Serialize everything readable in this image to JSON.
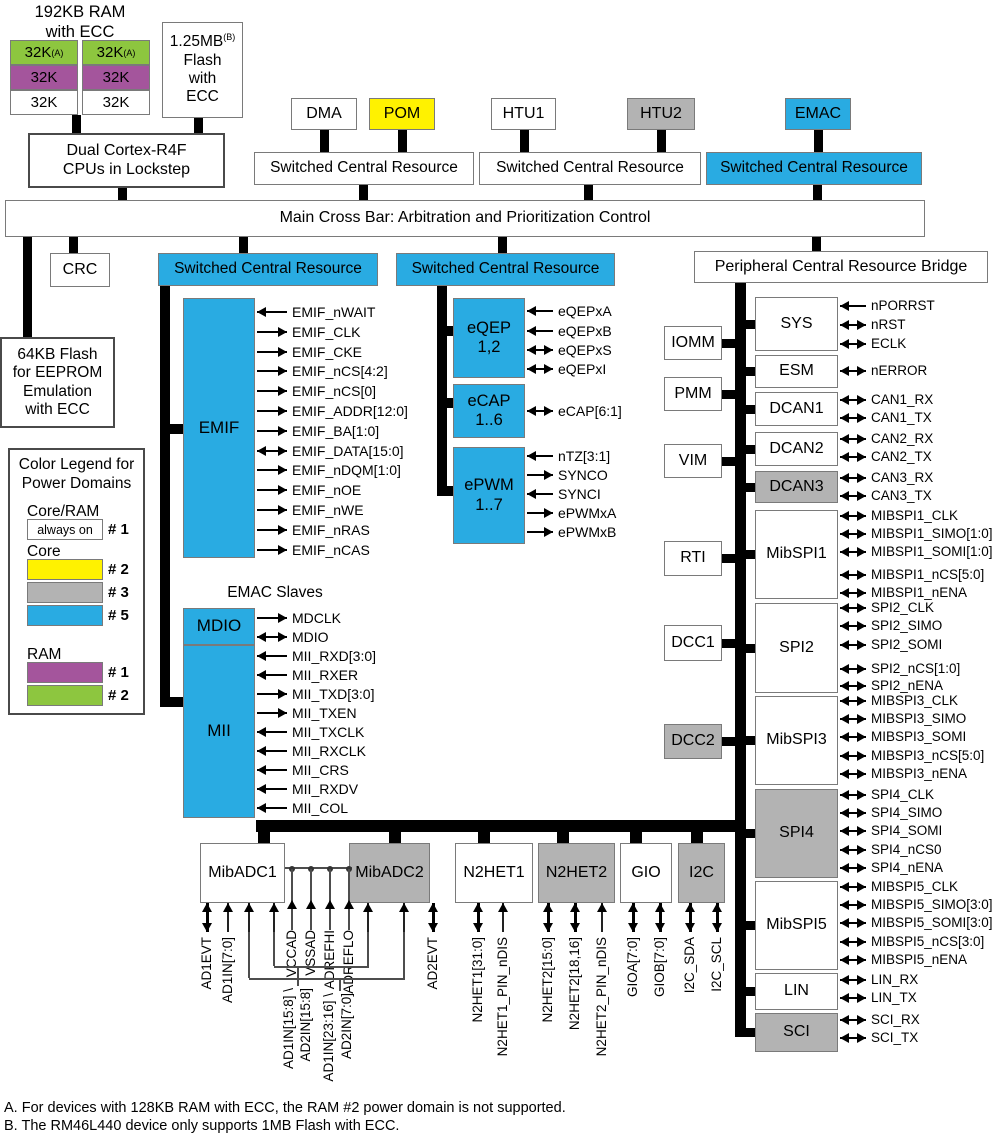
{
  "colors": {
    "white": "#FFFFFF",
    "cyan": "#29ABE2",
    "yellow": "#FFF200",
    "gray": "#B3B3B3",
    "green": "#8DC63F",
    "purple": "#A4559C"
  },
  "header": {
    "ram_title": "192KB RAM\nwith ECC",
    "ram_table": {
      "rows": [
        {
          "color": "green",
          "cells": [
            "32K",
            "32K"
          ],
          "sup": "(A)"
        },
        {
          "color": "purple",
          "cells": [
            "32K",
            "32K"
          ]
        },
        {
          "color": "white",
          "cells": [
            "32K",
            "32K"
          ]
        }
      ]
    },
    "flash": {
      "line1": "1.25MB",
      "line1_sup": "(B)",
      "rest": "Flash\nwith\nECC"
    },
    "cpu": "Dual Cortex-R4F\nCPUs in Lockstep",
    "masters": [
      {
        "label": "DMA",
        "color": "white"
      },
      {
        "label": "POM",
        "color": "yellow"
      },
      {
        "label": "HTU1",
        "color": "white"
      },
      {
        "label": "HTU2",
        "color": "gray"
      },
      {
        "label": "EMAC",
        "color": "cyan"
      }
    ],
    "scr_label": "Switched Central Resource",
    "scr_boxes": [
      {
        "color": "white"
      },
      {
        "color": "white"
      },
      {
        "color": "cyan"
      },
      {
        "color": "cyan"
      },
      {
        "color": "cyan"
      }
    ],
    "crossbar": "Main Cross Bar: Arbitration and Prioritization Control"
  },
  "left": {
    "crc": "CRC",
    "eeprom": "64KB Flash\nfor EEPROM\nEmulation\nwith ECC"
  },
  "legend": {
    "title": "Color Legend for\nPower Domains",
    "groups": [
      {
        "heading": "Core/RAM",
        "entries": [
          {
            "swatch": "white",
            "text": "always on",
            "label": "# 1"
          }
        ]
      },
      {
        "heading": "Core",
        "entries": [
          {
            "swatch": "yellow",
            "label": "# 2"
          },
          {
            "swatch": "gray",
            "label": "# 3"
          },
          {
            "swatch": "cyan",
            "label": "# 5"
          }
        ]
      },
      {
        "heading": "RAM",
        "entries": [
          {
            "swatch": "purple",
            "label": "# 1"
          },
          {
            "swatch": "green",
            "label": "# 2"
          }
        ]
      }
    ]
  },
  "emif": {
    "label": "EMIF",
    "color": "cyan",
    "signals": [
      [
        "EMIF_nWAIT",
        "in"
      ],
      [
        "EMIF_CLK",
        "out"
      ],
      [
        "EMIF_CKE",
        "out"
      ],
      [
        "EMIF_nCS[4:2]",
        "out"
      ],
      [
        "EMIF_nCS[0]",
        "out"
      ],
      [
        "EMIF_ADDR[12:0]",
        "out"
      ],
      [
        "EMIF_BA[1:0]",
        "out"
      ],
      [
        "EMIF_DATA[15:0]",
        "bi"
      ],
      [
        "EMIF_nDQM[1:0]",
        "out"
      ],
      [
        "EMIF_nOE",
        "out"
      ],
      [
        "EMIF_nWE",
        "out"
      ],
      [
        "EMIF_nRAS",
        "out"
      ],
      [
        "EMIF_nCAS",
        "out"
      ]
    ]
  },
  "emac_slaves": {
    "title": "EMAC Slaves",
    "mdio": {
      "label": "MDIO",
      "color": "cyan",
      "signals": [
        [
          "MDCLK",
          "out"
        ],
        [
          "MDIO",
          "bi"
        ]
      ]
    },
    "mii": {
      "label": "MII",
      "color": "cyan",
      "signals": [
        [
          "MII_RXD[3:0]",
          "in"
        ],
        [
          "MII_RXER",
          "in"
        ],
        [
          "MII_TXD[3:0]",
          "out"
        ],
        [
          "MII_TXEN",
          "out"
        ],
        [
          "MII_TXCLK",
          "in"
        ],
        [
          "MII_RXCLK",
          "in"
        ],
        [
          "MII_CRS",
          "in"
        ],
        [
          "MII_RXDV",
          "in"
        ],
        [
          "MII_COL",
          "in"
        ]
      ]
    }
  },
  "control_modules": [
    {
      "label": "eQEP\n1,2",
      "color": "cyan",
      "signals": [
        [
          "eQEPxA",
          "in"
        ],
        [
          "eQEPxB",
          "in"
        ],
        [
          "eQEPxS",
          "bi"
        ],
        [
          "eQEPxI",
          "bi"
        ]
      ]
    },
    {
      "label": "eCAP\n1..6",
      "color": "cyan",
      "signals": [
        [
          "eCAP[6:1]",
          "bi"
        ]
      ]
    },
    {
      "label": "ePWM\n1..7",
      "color": "cyan",
      "signals": [
        [
          "nTZ[3:1]",
          "in"
        ],
        [
          "SYNCO",
          "out"
        ],
        [
          "SYNCI",
          "in"
        ],
        [
          "ePWMxA",
          "out"
        ],
        [
          "ePWMxB",
          "out"
        ]
      ]
    }
  ],
  "peripheral_bridge": {
    "label": "Peripheral Central Resource Bridge",
    "system_modules": [
      {
        "label": "IOMM",
        "color": "white"
      },
      {
        "label": "PMM",
        "color": "white"
      },
      {
        "label": "VIM",
        "color": "white"
      },
      {
        "label": "RTI",
        "color": "white"
      },
      {
        "label": "DCC1",
        "color": "white"
      },
      {
        "label": "DCC2",
        "color": "gray"
      }
    ],
    "modules": [
      {
        "label": "SYS",
        "color": "white",
        "signals": [
          [
            "nPORRST",
            "in"
          ],
          [
            "nRST",
            "bi"
          ],
          [
            "ECLK",
            "bi"
          ]
        ]
      },
      {
        "label": "ESM",
        "color": "white",
        "signals": [
          [
            "nERROR",
            "bi"
          ]
        ]
      },
      {
        "label": "DCAN1",
        "color": "white",
        "signals": [
          [
            "CAN1_RX",
            "bi"
          ],
          [
            "CAN1_TX",
            "bi"
          ]
        ]
      },
      {
        "label": "DCAN2",
        "color": "white",
        "signals": [
          [
            "CAN2_RX",
            "bi"
          ],
          [
            "CAN2_TX",
            "bi"
          ]
        ]
      },
      {
        "label": "DCAN3",
        "color": "gray",
        "signals": [
          [
            "CAN3_RX",
            "bi"
          ],
          [
            "CAN3_TX",
            "bi"
          ]
        ]
      },
      {
        "label": "MibSPI1",
        "color": "white",
        "signals": [
          [
            "MIBSPI1_CLK",
            "bi"
          ],
          [
            "MIBSPI1_SIMO[1:0]",
            "bi"
          ],
          [
            "MIBSPI1_SOMI[1:0]",
            "bi"
          ],
          [
            "MIBSPI1_nCS[5:0]",
            "bi"
          ],
          [
            "MIBSPI1_nENA",
            "bi"
          ]
        ]
      },
      {
        "label": "SPI2",
        "color": "white",
        "signals": [
          [
            "SPI2_CLK",
            "bi"
          ],
          [
            "SPI2_SIMO",
            "bi"
          ],
          [
            "SPI2_SOMI",
            "bi"
          ],
          [
            "SPI2_nCS[1:0]",
            "bi"
          ],
          [
            "SPI2_nENA",
            "bi"
          ]
        ]
      },
      {
        "label": "MibSPI3",
        "color": "white",
        "signals": [
          [
            "MIBSPI3_CLK",
            "bi"
          ],
          [
            "MIBSPI3_SIMO",
            "bi"
          ],
          [
            "MIBSPI3_SOMI",
            "bi"
          ],
          [
            "MIBSPI3_nCS[5:0]",
            "bi"
          ],
          [
            "MIBSPI3_nENA",
            "bi"
          ]
        ]
      },
      {
        "label": "SPI4",
        "color": "gray",
        "signals": [
          [
            "SPI4_CLK",
            "bi"
          ],
          [
            "SPI4_SIMO",
            "bi"
          ],
          [
            "SPI4_SOMI",
            "bi"
          ],
          [
            "SPI4_nCS0",
            "bi"
          ],
          [
            "SPI4_nENA",
            "bi"
          ]
        ]
      },
      {
        "label": "MibSPI5",
        "color": "white",
        "signals": [
          [
            "MIBSPI5_CLK",
            "bi"
          ],
          [
            "MIBSPI5_SIMO[3:0]",
            "bi"
          ],
          [
            "MIBSPI5_SOMI[3:0]",
            "bi"
          ],
          [
            "MIBSPI5_nCS[3:0]",
            "bi"
          ],
          [
            "MIBSPI5_nENA",
            "bi"
          ]
        ]
      },
      {
        "label": "LIN",
        "color": "white",
        "signals": [
          [
            "LIN_RX",
            "bi"
          ],
          [
            "LIN_TX",
            "bi"
          ]
        ]
      },
      {
        "label": "SCI",
        "color": "gray",
        "signals": [
          [
            "SCI_RX",
            "bi"
          ],
          [
            "SCI_TX",
            "bi"
          ]
        ]
      }
    ]
  },
  "bottom_modules": [
    {
      "label": "MibADC1",
      "color": "white",
      "pins": [
        [
          "AD1EVT",
          "bi"
        ],
        [
          "AD1IN[7:0]",
          "up"
        ]
      ]
    },
    {
      "label": "MibADC2",
      "color": "gray",
      "pins": [
        [
          "AD2EVT",
          "bi"
        ]
      ]
    },
    {
      "label": "N2HET1",
      "color": "white",
      "pins": [
        [
          "N2HET1[31:0]",
          "bi"
        ],
        [
          "N2HET1_PIN_nDIS",
          "up"
        ]
      ]
    },
    {
      "label": "N2HET2",
      "color": "gray",
      "pins": [
        [
          "N2HET2[15:0]",
          "bi"
        ],
        [
          "N2HET2[18,16]",
          "bi"
        ],
        [
          "N2HET2_PIN_nDIS",
          "up"
        ]
      ]
    },
    {
      "label": "GIO",
      "color": "white",
      "pins": [
        [
          "GIOA[7:0]",
          "bi"
        ],
        [
          "GIOB[7:0]",
          "bi"
        ]
      ]
    },
    {
      "label": "I2C",
      "color": "gray",
      "pins": [
        [
          "I2C_SDA",
          "bi"
        ],
        [
          "I2C_SCL",
          "bi"
        ]
      ]
    }
  ],
  "adc_shared": {
    "supply_pins": [
      "VCCAD",
      "VSSAD",
      "ADREFHI",
      "ADREFLO"
    ],
    "shared_inputs": [
      "AD1IN[15:8] \\",
      "AD2IN[15:8]",
      "AD1IN[23:16] \\",
      "AD2IN[7:0]"
    ]
  },
  "footnotes": [
    "A. For devices with 128KB RAM with ECC, the RAM #2 power domain is not supported.",
    "B. The RM46L440 device only supports 1MB Flash with ECC."
  ]
}
